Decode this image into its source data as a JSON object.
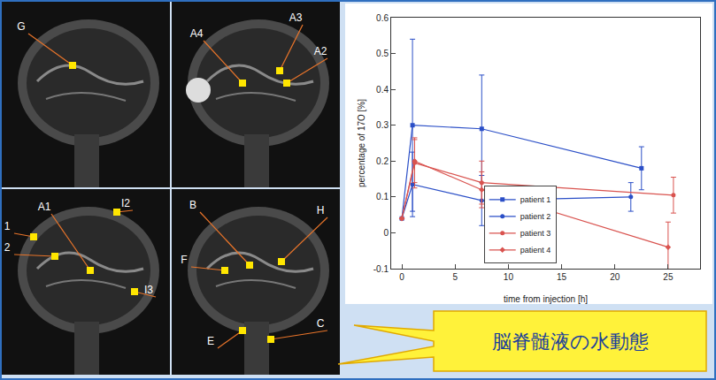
{
  "mri_panels": [
    {
      "labels": [
        "G"
      ]
    },
    {
      "labels": [
        "A4",
        "A3",
        "A2"
      ]
    },
    {
      "labels": [
        "A1",
        "I2",
        "1",
        "2",
        "I3"
      ]
    },
    {
      "labels": [
        "B",
        "H",
        "F",
        "E",
        "C"
      ]
    }
  ],
  "chart_data": {
    "type": "line",
    "x_label": "time from injection [h]",
    "y_label": "percentage of 17O [%]",
    "xlim": [
      -1,
      28
    ],
    "xticks": [
      0,
      5,
      10,
      15,
      20,
      25
    ],
    "ylim": [
      -0.1,
      0.6
    ],
    "yticks": [
      -0.1,
      0,
      0.1,
      0.2,
      0.3,
      0.4,
      0.5,
      0.6
    ],
    "grid": false,
    "legend": "lower center",
    "series": [
      {
        "name": "patient 1",
        "color": "#2b4fc7",
        "marker": "square",
        "x": [
          0,
          1,
          7.5,
          22.5
        ],
        "values": [
          0.04,
          0.3,
          0.29,
          0.18
        ],
        "error": [
          0,
          0.24,
          0.15,
          0.06
        ]
      },
      {
        "name": "patient 2",
        "color": "#2b4fc7",
        "marker": "circle",
        "x": [
          0,
          1,
          7.5,
          21.5
        ],
        "values": [
          0.04,
          0.135,
          0.09,
          0.1
        ],
        "error": [
          0,
          0.09,
          0.07,
          0.04
        ]
      },
      {
        "name": "patient 3",
        "color": "#d9534f",
        "marker": "circle",
        "x": [
          0,
          1.2,
          7.5,
          25.5
        ],
        "values": [
          0.04,
          0.195,
          0.14,
          0.105
        ],
        "error": [
          0,
          0.07,
          0.06,
          0.05
        ]
      },
      {
        "name": "patient 4",
        "color": "#d9534f",
        "marker": "diamond",
        "x": [
          0,
          1.2,
          7.5,
          25
        ],
        "values": [
          0.04,
          0.2,
          0.12,
          -0.04
        ],
        "error": [
          0,
          0.06,
          0.05,
          0.07
        ]
      }
    ]
  },
  "callout": {
    "text": "脳脊髄液の水動態"
  }
}
